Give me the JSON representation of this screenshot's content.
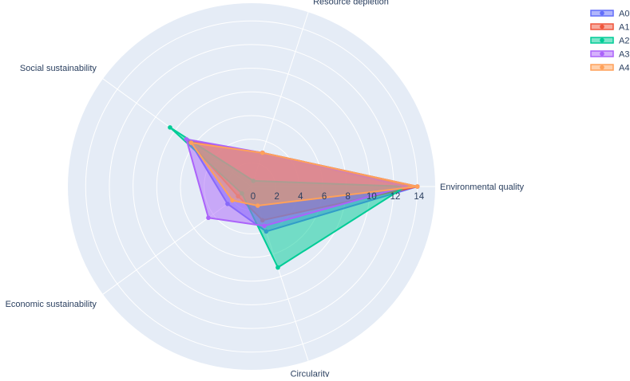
{
  "chart_data": {
    "type": "radar",
    "axes": [
      "Environmental quality",
      "Resource depletion",
      "Social sustainability",
      "Economic sustainability",
      "Circularity"
    ],
    "radial_ticks": [
      "0",
      "2",
      "4",
      "6",
      "8",
      "10",
      "12",
      "14"
    ],
    "rlim": [
      0,
      15.5
    ],
    "grid": true,
    "legend_position": "top-right",
    "series": [
      {
        "name": "A0",
        "color": "#636efa",
        "values": [
          14.0,
          3.0,
          6.4,
          2.5,
          4.0
        ]
      },
      {
        "name": "A1",
        "color": "#ef553b",
        "values": [
          14.0,
          3.0,
          6.5,
          1.4,
          3.0
        ]
      },
      {
        "name": "A2",
        "color": "#00cc96",
        "values": [
          13.0,
          0.5,
          8.5,
          1.0,
          7.2
        ]
      },
      {
        "name": "A3",
        "color": "#ab63fa",
        "values": [
          13.0,
          3.0,
          6.8,
          4.5,
          3.5
        ]
      },
      {
        "name": "A4",
        "color": "#ffa15a",
        "values": [
          14.0,
          3.0,
          6.3,
          2.0,
          1.7
        ]
      }
    ]
  }
}
